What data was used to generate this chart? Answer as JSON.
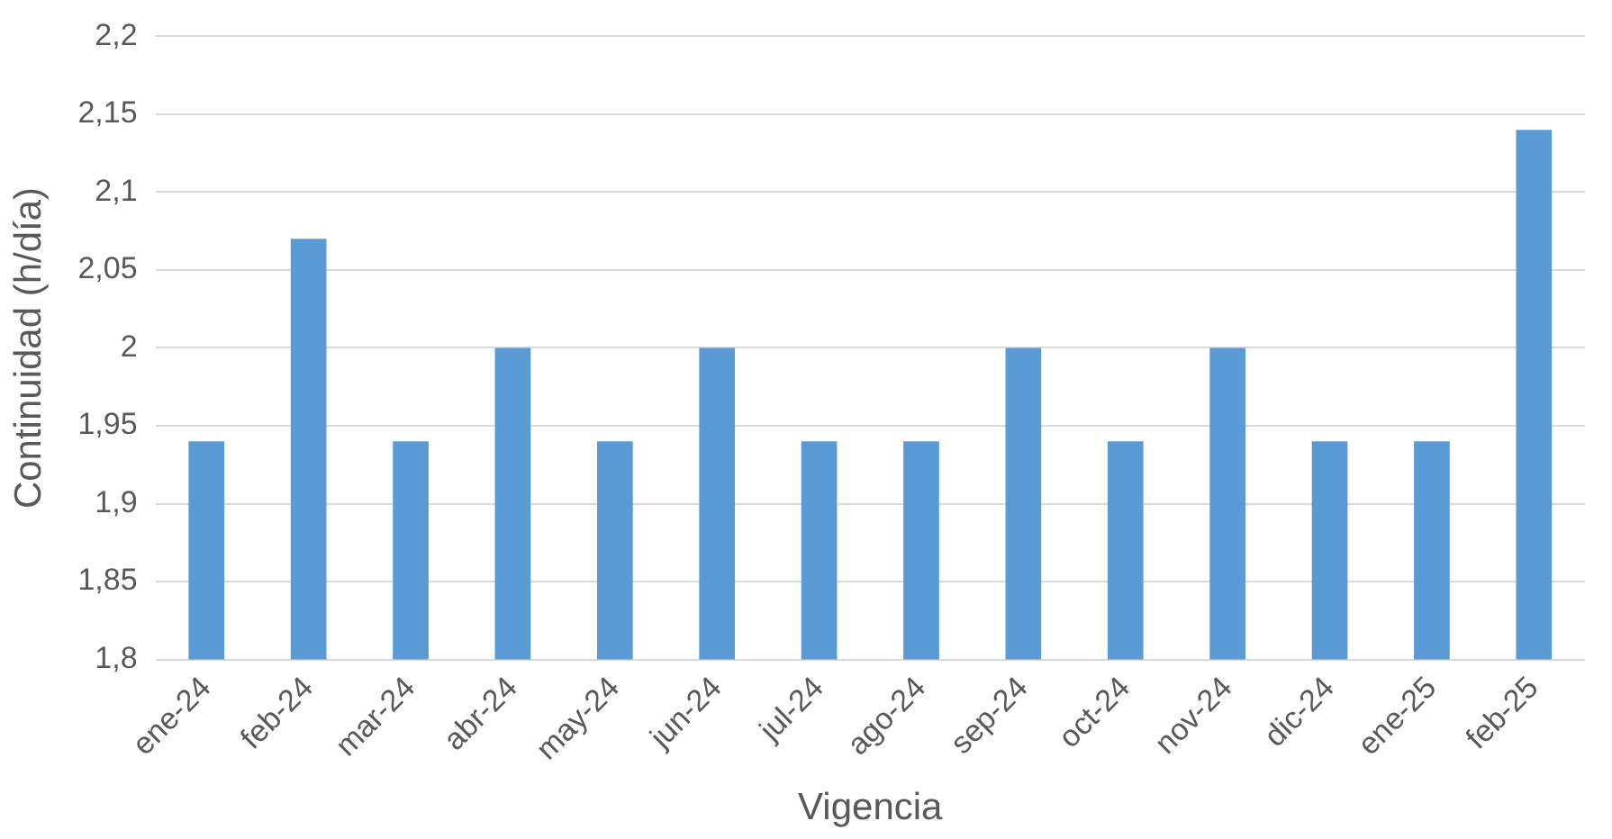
{
  "chart_data": {
    "type": "bar",
    "xlabel": "Vigencia",
    "ylabel": "Continuidad (h/día)",
    "categories": [
      "ene-24",
      "feb-24",
      "mar-24",
      "abr-24",
      "may-24",
      "jun-24",
      "jul-24",
      "ago-24",
      "sep-24",
      "oct-24",
      "nov-24",
      "dic-24",
      "ene-25",
      "feb-25"
    ],
    "values": [
      1.94,
      2.07,
      1.94,
      2.0,
      1.94,
      2.0,
      1.94,
      1.94,
      2.0,
      1.94,
      2.0,
      1.94,
      1.94,
      2.14
    ],
    "color": "#5b9bd5",
    "ylim": [
      1.8,
      2.2
    ],
    "yticks": [
      {
        "value": 1.8,
        "label": "1,8"
      },
      {
        "value": 1.85,
        "label": "1,85"
      },
      {
        "value": 1.9,
        "label": "1,9"
      },
      {
        "value": 1.95,
        "label": "1,95"
      },
      {
        "value": 2,
        "label": "2"
      },
      {
        "value": 2.05,
        "label": "2,05"
      },
      {
        "value": 2.1,
        "label": "2,1"
      },
      {
        "value": 2.15,
        "label": "2,15"
      },
      {
        "value": 2.2,
        "label": "2,2"
      }
    ],
    "grid": "y",
    "legend": false
  }
}
